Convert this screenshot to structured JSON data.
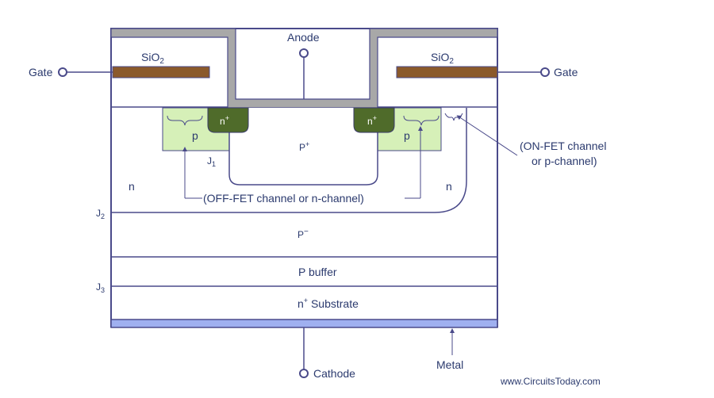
{
  "colors": {
    "line": "#4a4a8a",
    "metal_gray": "#a8a8a8",
    "gate_brown": "#8b5a2b",
    "p_region": "#d6f0b8",
    "n_plus": "#4f6b2a",
    "bottom_metal": "#9fb0f0",
    "text": "#2b3a6e"
  },
  "labels": {
    "anode": "Anode",
    "gate_left": "Gate",
    "gate_right": "Gate",
    "sio2_left": "SiO",
    "sio2_right": "SiO",
    "sio2_sub": "2",
    "n_plus_left": "n",
    "n_plus_right": "n",
    "plus": "+",
    "p_left": "p",
    "p_right": "p",
    "p_plus_main": "P",
    "j1": "J",
    "j1_sub": "1",
    "j2": "J",
    "j2_sub": "2",
    "j3": "J",
    "j3_sub": "3",
    "n_left": "n",
    "n_right": "n",
    "p_minus_main": "P",
    "minus": "−",
    "p_buffer": "P buffer",
    "substrate_n": "n",
    "substrate_text": " Substrate",
    "off_fet": "(OFF-FET channel or n-channel)",
    "on_fet_line1": "(ON-FET channel",
    "on_fet_line2": "or p-channel)",
    "cathode": "Cathode",
    "metal": "Metal",
    "watermark": "www.CircuitsToday.com"
  }
}
